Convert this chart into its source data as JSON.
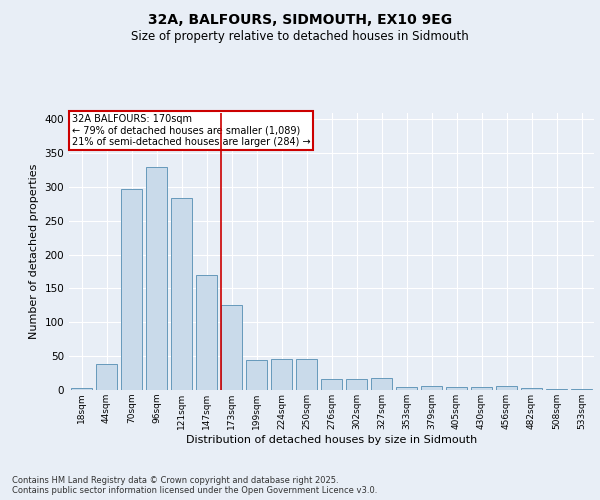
{
  "title": "32A, BALFOURS, SIDMOUTH, EX10 9EG",
  "subtitle": "Size of property relative to detached houses in Sidmouth",
  "xlabel": "Distribution of detached houses by size in Sidmouth",
  "ylabel": "Number of detached properties",
  "bar_labels": [
    "18sqm",
    "44sqm",
    "70sqm",
    "96sqm",
    "121sqm",
    "147sqm",
    "173sqm",
    "199sqm",
    "224sqm",
    "250sqm",
    "276sqm",
    "302sqm",
    "327sqm",
    "353sqm",
    "379sqm",
    "405sqm",
    "430sqm",
    "456sqm",
    "482sqm",
    "508sqm",
    "533sqm"
  ],
  "bar_heights": [
    3,
    38,
    297,
    330,
    284,
    170,
    125,
    44,
    46,
    46,
    16,
    16,
    18,
    4,
    6,
    4,
    4,
    6,
    3,
    1,
    2
  ],
  "bar_color": "#c9daea",
  "bar_edge_color": "#6699bb",
  "bg_color": "#e8eef6",
  "plot_bg_color": "#e8eef6",
  "marker_line_color": "#cc0000",
  "annotation_text": "32A BALFOURS: 170sqm\n← 79% of detached houses are smaller (1,089)\n21% of semi-detached houses are larger (284) →",
  "annotation_box_color": "#ffffff",
  "annotation_box_edge": "#cc0000",
  "footer_text": "Contains HM Land Registry data © Crown copyright and database right 2025.\nContains public sector information licensed under the Open Government Licence v3.0.",
  "ylim": [
    0,
    410
  ],
  "yticks": [
    0,
    50,
    100,
    150,
    200,
    250,
    300,
    350,
    400
  ]
}
